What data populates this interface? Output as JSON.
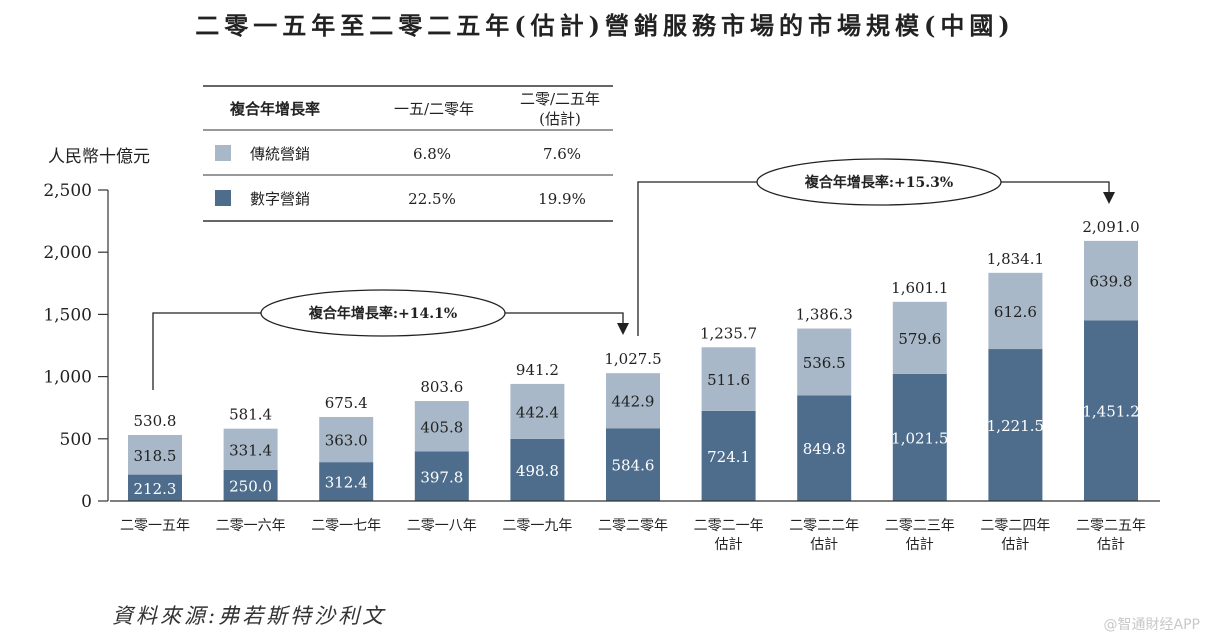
{
  "title": "二零一五年至二零二五年(估計)營銷服務市場的市場規模(中國)",
  "unit_label": "人民幣十億元",
  "source": "資料來源:弗若斯特沙利文",
  "watermark": "@智通財经APP",
  "colors": {
    "traditional": "#a8b8c8",
    "digital": "#4e6d8c",
    "axis": "#333333"
  },
  "table": {
    "header": [
      "複合年增長率",
      "一五/二零年",
      "二零/二五年",
      "(估計)"
    ],
    "rows": [
      {
        "label": "傳統營銷",
        "cagr_2015_2020": "6.8%",
        "cagr_2020_2025": "7.6%"
      },
      {
        "label": "數字營銷",
        "cagr_2015_2020": "22.5%",
        "cagr_2020_2025": "19.9%"
      }
    ]
  },
  "annotations": [
    {
      "text": "複合年增長率:+14.1%"
    },
    {
      "text": "複合年增長率:+15.3%"
    }
  ],
  "chart_data": {
    "type": "bar",
    "stacked": true,
    "title": "二零一五年至二零二五年(估計)營銷服務市場的市場規模(中國)",
    "ylabel": "人民幣十億元",
    "ylim": [
      0,
      2500
    ],
    "yticks": [
      "0",
      "500",
      "1,000",
      "1,500",
      "2,000",
      "2,500"
    ],
    "categories": [
      [
        "二零一五年"
      ],
      [
        "二零一六年"
      ],
      [
        "二零一七年"
      ],
      [
        "二零一八年"
      ],
      [
        "二零一九年"
      ],
      [
        "二零二零年"
      ],
      [
        "二零二一年",
        "估計"
      ],
      [
        "二零二二年",
        "估計"
      ],
      [
        "二零二三年",
        "估計"
      ],
      [
        "二零二四年",
        "估計"
      ],
      [
        "二零二五年",
        "估計"
      ]
    ],
    "series": [
      {
        "name": "數字營銷",
        "color": "#4e6d8c",
        "values": [
          212.3,
          250.0,
          312.4,
          397.8,
          498.8,
          584.6,
          724.1,
          849.8,
          1021.5,
          1221.5,
          1451.2
        ],
        "labels": [
          "212.3",
          "250.0",
          "312.4",
          "397.8",
          "498.8",
          "584.6",
          "724.1",
          "849.8",
          "1,021.5",
          "1,221.5",
          "1,451.2"
        ]
      },
      {
        "name": "傳統營銷",
        "color": "#a8b8c8",
        "values": [
          318.5,
          331.4,
          363.0,
          405.8,
          442.4,
          442.9,
          511.6,
          536.5,
          579.6,
          612.6,
          639.8
        ],
        "labels": [
          "318.5",
          "331.4",
          "363.0",
          "405.8",
          "442.4",
          "442.9",
          "511.6",
          "536.5",
          "579.6",
          "612.6",
          "639.8"
        ]
      }
    ],
    "totals": [
      530.8,
      581.4,
      675.4,
      803.6,
      941.2,
      1027.5,
      1235.7,
      1386.3,
      1601.1,
      1834.1,
      2091.0
    ],
    "total_labels": [
      "530.8",
      "581.4",
      "675.4",
      "803.6",
      "941.2",
      "1,027.5",
      "1,235.7",
      "1,386.3",
      "1,601.1",
      "1,834.1",
      "2,091.0"
    ],
    "cagr_annotations": [
      {
        "text": "複合年增長率:+14.1%",
        "from_index": 0,
        "to_index": 5
      },
      {
        "text": "複合年增長率:+15.3%",
        "from_index": 5,
        "to_index": 10
      }
    ]
  }
}
